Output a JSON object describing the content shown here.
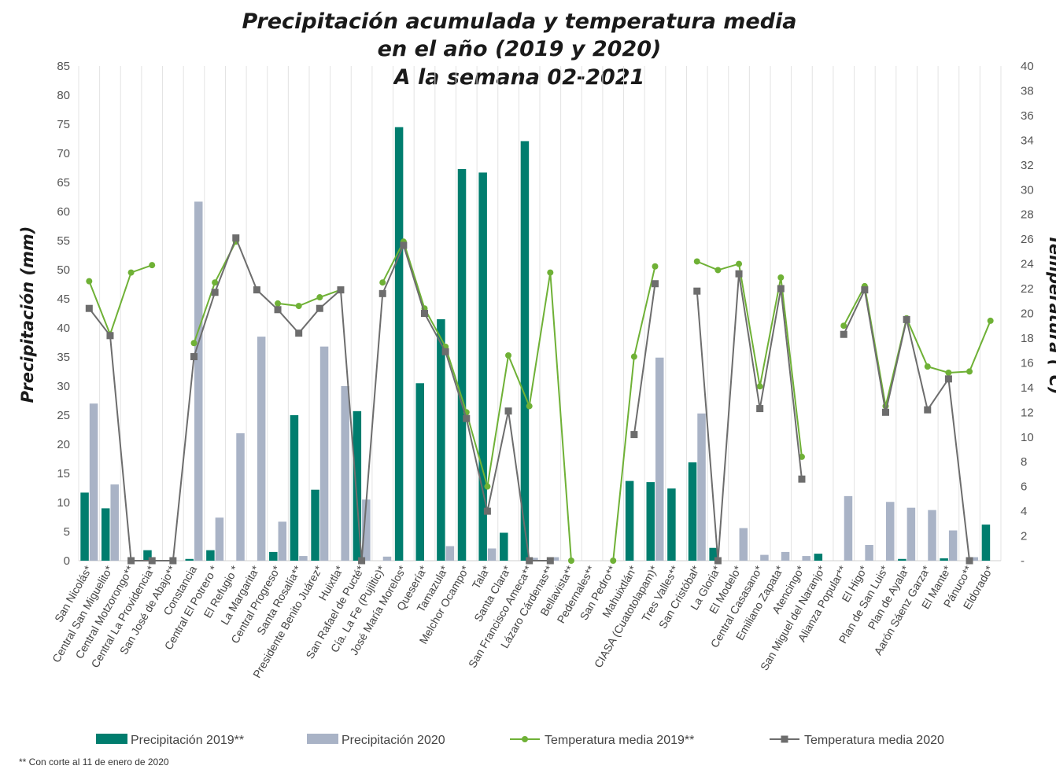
{
  "chart_data": {
    "type": "bar+line",
    "title": [
      "Precipitación acumulada y temperatura media",
      "en el año (2019 y 2020)",
      "A la semana 02-2021"
    ],
    "ylabel_left": "Precipitación (mm)",
    "ylabel_right": "Temperatura (°C)",
    "ylim_left": [
      0,
      85
    ],
    "ylim_right": [
      0,
      40
    ],
    "yticks_left": [
      "0",
      "5",
      "10",
      "15",
      "20",
      "25",
      "30",
      "35",
      "40",
      "45",
      "50",
      "55",
      "60",
      "65",
      "70",
      "75",
      "80",
      "85"
    ],
    "yticks_right": [
      "-",
      "2",
      "4",
      "6",
      "8",
      "10",
      "12",
      "14",
      "16",
      "18",
      "20",
      "22",
      "24",
      "26",
      "28",
      "30",
      "32",
      "34",
      "36",
      "38",
      "40"
    ],
    "grid": "vertical",
    "legend_position": "bottom",
    "categories": [
      "San Nicolás*",
      "Central San Miguelito*",
      "Central Motzorongo**",
      "Central La Providencia*",
      "San José de Abajo**",
      "Constancia",
      "Central El Potrero *",
      "El Refugio *",
      "La Margarita*",
      "Central Progreso*",
      "Santa Rosalía**",
      "Presidente Benito Juárez*",
      "Huixtla*",
      "San Rafael de Pucté*",
      "Cía. La Fe (Pujiltic)*",
      "José María Morelos*",
      "Quesería*",
      "Tamazula*",
      "Melchor Ocampo*",
      "Tala*",
      "Santa Clara*",
      "San Francisco Ameca**",
      "Lázaro Cárdenas**",
      "Bellavista**",
      "Pedernales**",
      "San Pedro**",
      "Mahuixtlán*",
      "CIASA (Cuatotolapam)*",
      "Tres Valles**",
      "San Cristóbal*",
      "La Gloria*",
      "El Modelo*",
      "Central Casasano*",
      "Emiliano Zapata*",
      "Atencingo*",
      "San Miguel del Naranjo*",
      "Alianza Popular**",
      "El Higo*",
      "Plan de San Luis*",
      "Plan de Ayala*",
      "Aarón Sáenz Garza*",
      "El Mante*",
      "Pánuco**",
      "Eldorado*"
    ],
    "series": [
      {
        "name": "Precipitación 2019**",
        "kind": "bar",
        "axis": "left",
        "color": "#007d6e",
        "values": [
          11.7,
          9,
          0,
          1.8,
          0,
          0.3,
          1.8,
          0,
          0,
          1.5,
          25,
          12.2,
          0,
          25.7,
          0,
          74.5,
          30.5,
          41.5,
          67.3,
          66.7,
          4.8,
          72.1,
          0,
          0,
          0,
          0,
          13.7,
          13.5,
          12.4,
          16.9,
          2.2,
          0,
          0,
          0,
          0,
          1.2,
          0,
          0,
          0,
          0.3,
          0,
          0.4,
          0,
          6.2
        ]
      },
      {
        "name": "Precipitación 2020",
        "kind": "bar",
        "axis": "left",
        "color": "#a9b3c6",
        "values": [
          27,
          13.1,
          0,
          0,
          0,
          61.7,
          7.4,
          21.9,
          38.5,
          6.7,
          0.8,
          36.8,
          30,
          10.5,
          0.7,
          0,
          0,
          2.5,
          0,
          2.1,
          0,
          0.5,
          0.6,
          0,
          0,
          0,
          0,
          34.9,
          0,
          25.3,
          0,
          5.6,
          1,
          1.5,
          0.8,
          0,
          11.1,
          2.7,
          10.1,
          9.1,
          8.7,
          5.2,
          0.6,
          0
        ]
      },
      {
        "name": "Temperatura media 2019**",
        "kind": "line",
        "axis": "right",
        "color": "#6fb136",
        "values": [
          22.6,
          18.3,
          23.3,
          23.9,
          null,
          17.6,
          22.5,
          25.8,
          null,
          20.8,
          20.6,
          21.3,
          21.9,
          null,
          22.5,
          25.8,
          20.4,
          17.3,
          12,
          6,
          16.6,
          12.5,
          23.3,
          0,
          null,
          0,
          16.5,
          23.8,
          null,
          24.2,
          23.5,
          24,
          14.1,
          22.9,
          8.4,
          null,
          19,
          22.2,
          12.5,
          19.6,
          15.7,
          15.2,
          15.3,
          19.4
        ]
      },
      {
        "name": "Temperatura media 2020",
        "kind": "line",
        "axis": "right",
        "color": "#6d6d6d",
        "values": [
          20.4,
          18.2,
          0,
          0,
          0,
          16.5,
          21.7,
          26.1,
          21.9,
          20.3,
          18.4,
          20.4,
          21.9,
          0,
          21.6,
          25.5,
          20,
          16.9,
          11.5,
          4,
          12.1,
          0,
          0,
          null,
          null,
          null,
          10.2,
          22.4,
          null,
          21.8,
          0,
          23.2,
          12.3,
          22,
          6.6,
          null,
          18.3,
          21.9,
          12,
          19.5,
          12.2,
          14.7,
          0,
          null
        ]
      }
    ]
  },
  "footnote": "** Con corte al 11 de enero de 2020"
}
